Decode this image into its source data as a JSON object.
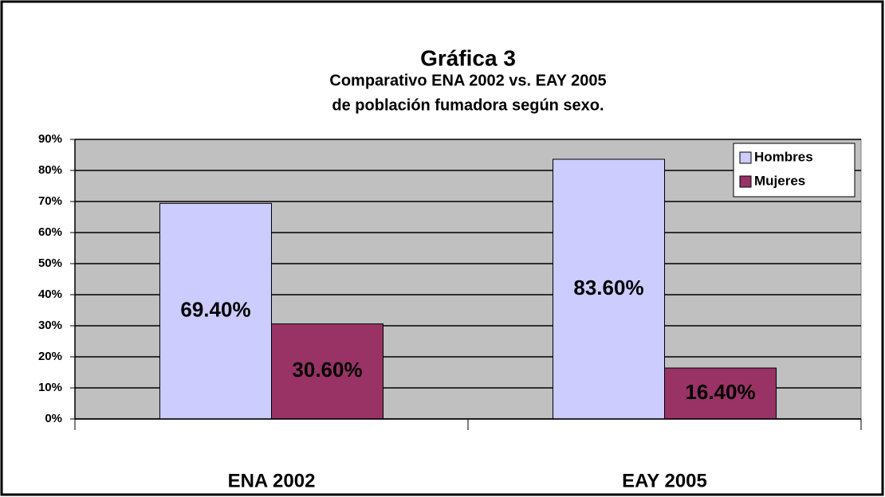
{
  "chart_data": {
    "type": "bar",
    "title": "Gráfica 3",
    "subtitle": [
      "Comparativo ENA 2002 vs. EAY 2005",
      "de población fumadora según sexo."
    ],
    "categories": [
      "ENA 2002",
      "EAY 2005"
    ],
    "series": [
      {
        "name": "Hombres",
        "color": "#ccccff",
        "values": [
          69.4,
          83.6
        ],
        "value_labels": [
          "69.40%",
          "83.60%"
        ]
      },
      {
        "name": "Mujeres",
        "color": "#993366",
        "values": [
          30.6,
          16.4
        ],
        "value_labels": [
          "30.60%",
          "16.40%"
        ]
      }
    ],
    "ylim": [
      0,
      90
    ],
    "yticks": [
      {
        "value": 0,
        "label": "0%"
      },
      {
        "value": 10,
        "label": "10%"
      },
      {
        "value": 20,
        "label": "20%"
      },
      {
        "value": 30,
        "label": "30%"
      },
      {
        "value": 40,
        "label": "40%"
      },
      {
        "value": 50,
        "label": "50%"
      },
      {
        "value": 60,
        "label": "60%"
      },
      {
        "value": 70,
        "label": "70%"
      },
      {
        "value": 80,
        "label": "80%"
      },
      {
        "value": 90,
        "label": "90%"
      }
    ],
    "grid": true,
    "legend": "top-right"
  }
}
